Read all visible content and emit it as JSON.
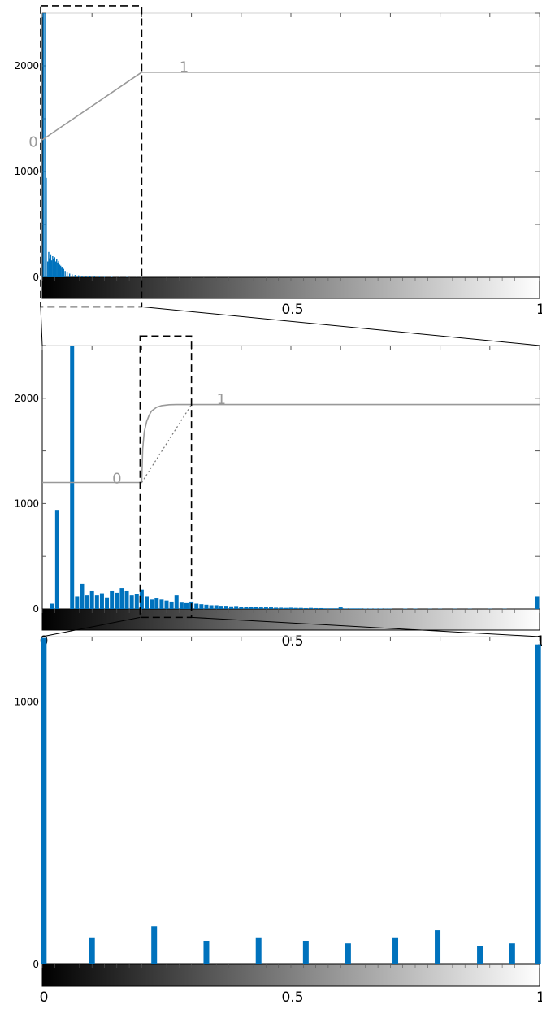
{
  "chart_data": [
    {
      "type": "bar",
      "xlim": [
        0,
        1
      ],
      "ylim": [
        0,
        2500
      ],
      "yticks": [
        0,
        1000,
        2000
      ],
      "xtick_labels": [
        "0.5",
        "1"
      ],
      "grid": false,
      "colors": {
        "bar": "#0072BD",
        "curve": "#999999",
        "curve_label": "#999999"
      },
      "bars": [
        {
          "x": 0.002,
          "y": 2500
        },
        {
          "x": 0.005,
          "y": 2500
        },
        {
          "x": 0.008,
          "y": 940
        },
        {
          "x": 0.011,
          "y": 150
        },
        {
          "x": 0.013,
          "y": 240
        },
        {
          "x": 0.015,
          "y": 180
        },
        {
          "x": 0.017,
          "y": 210
        },
        {
          "x": 0.019,
          "y": 160
        },
        {
          "x": 0.021,
          "y": 200
        },
        {
          "x": 0.023,
          "y": 170
        },
        {
          "x": 0.025,
          "y": 190
        },
        {
          "x": 0.027,
          "y": 150
        },
        {
          "x": 0.029,
          "y": 175
        },
        {
          "x": 0.031,
          "y": 140
        },
        {
          "x": 0.033,
          "y": 155
        },
        {
          "x": 0.035,
          "y": 120
        },
        {
          "x": 0.037,
          "y": 110
        },
        {
          "x": 0.039,
          "y": 90
        },
        {
          "x": 0.041,
          "y": 100
        },
        {
          "x": 0.043,
          "y": 80
        },
        {
          "x": 0.046,
          "y": 60
        },
        {
          "x": 0.05,
          "y": 45
        },
        {
          "x": 0.055,
          "y": 35
        },
        {
          "x": 0.06,
          "y": 28
        },
        {
          "x": 0.066,
          "y": 22
        },
        {
          "x": 0.073,
          "y": 18
        },
        {
          "x": 0.08,
          "y": 14
        },
        {
          "x": 0.088,
          "y": 12
        },
        {
          "x": 0.096,
          "y": 10
        },
        {
          "x": 0.105,
          "y": 8
        },
        {
          "x": 0.115,
          "y": 6
        },
        {
          "x": 0.125,
          "y": 5
        },
        {
          "x": 0.14,
          "y": 4
        },
        {
          "x": 0.155,
          "y": 3
        },
        {
          "x": 0.17,
          "y": 3
        },
        {
          "x": 0.19,
          "y": 2
        }
      ],
      "curve": [
        [
          0,
          1300
        ],
        [
          0.2,
          1940
        ],
        [
          1,
          1940
        ]
      ],
      "curve_labels": [
        {
          "text": "0",
          "x": -0.018,
          "y": 1280
        },
        {
          "text": "1",
          "x": 0.285,
          "y": 1990
        }
      ],
      "zoom_box": {
        "x": [
          0,
          0.2
        ],
        "y": [
          -280,
          2570
        ]
      }
    },
    {
      "type": "bar",
      "xlim": [
        0,
        1
      ],
      "ylim": [
        0,
        2500
      ],
      "yticks": [
        0,
        1000,
        2000
      ],
      "xtick_labels": [
        "0",
        "0.5",
        "1"
      ],
      "grid": false,
      "colors": {
        "bar": "#0072BD",
        "curve": "#999999",
        "curve_label": "#999999"
      },
      "bars": [
        {
          "x": 0.02,
          "y": 50
        },
        {
          "x": 0.03,
          "y": 940
        },
        {
          "x": 0.06,
          "y": 2500
        },
        {
          "x": 0.07,
          "y": 120
        },
        {
          "x": 0.08,
          "y": 240
        },
        {
          "x": 0.09,
          "y": 130
        },
        {
          "x": 0.1,
          "y": 170
        },
        {
          "x": 0.11,
          "y": 130
        },
        {
          "x": 0.12,
          "y": 150
        },
        {
          "x": 0.13,
          "y": 110
        },
        {
          "x": 0.14,
          "y": 170
        },
        {
          "x": 0.15,
          "y": 155
        },
        {
          "x": 0.16,
          "y": 200
        },
        {
          "x": 0.17,
          "y": 170
        },
        {
          "x": 0.18,
          "y": 130
        },
        {
          "x": 0.19,
          "y": 140
        },
        {
          "x": 0.2,
          "y": 180
        },
        {
          "x": 0.21,
          "y": 120
        },
        {
          "x": 0.22,
          "y": 90
        },
        {
          "x": 0.23,
          "y": 100
        },
        {
          "x": 0.24,
          "y": 90
        },
        {
          "x": 0.25,
          "y": 80
        },
        {
          "x": 0.26,
          "y": 70
        },
        {
          "x": 0.27,
          "y": 130
        },
        {
          "x": 0.28,
          "y": 60
        },
        {
          "x": 0.29,
          "y": 55
        },
        {
          "x": 0.3,
          "y": 70
        },
        {
          "x": 0.31,
          "y": 50
        },
        {
          "x": 0.32,
          "y": 45
        },
        {
          "x": 0.33,
          "y": 40
        },
        {
          "x": 0.34,
          "y": 35
        },
        {
          "x": 0.35,
          "y": 35
        },
        {
          "x": 0.36,
          "y": 30
        },
        {
          "x": 0.37,
          "y": 30
        },
        {
          "x": 0.38,
          "y": 25
        },
        {
          "x": 0.39,
          "y": 28
        },
        {
          "x": 0.4,
          "y": 22
        },
        {
          "x": 0.41,
          "y": 20
        },
        {
          "x": 0.42,
          "y": 20
        },
        {
          "x": 0.43,
          "y": 18
        },
        {
          "x": 0.44,
          "y": 15
        },
        {
          "x": 0.45,
          "y": 15
        },
        {
          "x": 0.46,
          "y": 15
        },
        {
          "x": 0.47,
          "y": 12
        },
        {
          "x": 0.48,
          "y": 12
        },
        {
          "x": 0.49,
          "y": 10
        },
        {
          "x": 0.5,
          "y": 12
        },
        {
          "x": 0.51,
          "y": 10
        },
        {
          "x": 0.52,
          "y": 10
        },
        {
          "x": 0.53,
          "y": 8
        },
        {
          "x": 0.54,
          "y": 10
        },
        {
          "x": 0.55,
          "y": 8
        },
        {
          "x": 0.56,
          "y": 8
        },
        {
          "x": 0.57,
          "y": 6
        },
        {
          "x": 0.58,
          "y": 6
        },
        {
          "x": 0.59,
          "y": 6
        },
        {
          "x": 0.6,
          "y": 15
        },
        {
          "x": 0.61,
          "y": 5
        },
        {
          "x": 0.62,
          "y": 5
        },
        {
          "x": 0.63,
          "y": 5
        },
        {
          "x": 0.64,
          "y": 5
        },
        {
          "x": 0.65,
          "y": 4
        },
        {
          "x": 0.66,
          "y": 4
        },
        {
          "x": 0.67,
          "y": 4
        },
        {
          "x": 0.68,
          "y": 4
        },
        {
          "x": 0.69,
          "y": 3
        },
        {
          "x": 0.7,
          "y": 3
        },
        {
          "x": 0.73,
          "y": 3
        },
        {
          "x": 0.75,
          "y": 3
        },
        {
          "x": 0.78,
          "y": 2
        },
        {
          "x": 0.8,
          "y": 2
        },
        {
          "x": 0.83,
          "y": 2
        },
        {
          "x": 0.86,
          "y": 2
        },
        {
          "x": 0.9,
          "y": 2
        },
        {
          "x": 0.93,
          "y": 2
        },
        {
          "x": 0.995,
          "y": 120
        }
      ],
      "curve": [
        [
          0,
          1200
        ],
        [
          0.2,
          1200
        ],
        [
          0.202,
          1520
        ],
        [
          0.205,
          1680
        ],
        [
          0.21,
          1780
        ],
        [
          0.215,
          1840
        ],
        [
          0.22,
          1880
        ],
        [
          0.23,
          1915
        ],
        [
          0.24,
          1930
        ],
        [
          0.255,
          1938
        ],
        [
          0.27,
          1940
        ],
        [
          1,
          1940
        ]
      ],
      "linear_guide": [
        [
          0.2,
          1200
        ],
        [
          0.3,
          1940
        ]
      ],
      "curve_labels": [
        {
          "text": "0",
          "x": 0.15,
          "y": 1240
        },
        {
          "text": "1",
          "x": 0.36,
          "y": 1990
        }
      ],
      "zoom_box": {
        "x": [
          0.2,
          0.3
        ],
        "y": [
          -80,
          2590
        ]
      }
    },
    {
      "type": "bar",
      "xlim": [
        0,
        1
      ],
      "ylim": [
        0,
        1250
      ],
      "yticks": [
        0,
        1000
      ],
      "xtick_labels": [
        "0",
        "0.5",
        "1"
      ],
      "grid": false,
      "colors": {
        "bar": "#0072BD"
      },
      "bars": [
        {
          "x": 0.003,
          "y": 1245
        },
        {
          "x": 0.1,
          "y": 100
        },
        {
          "x": 0.225,
          "y": 145
        },
        {
          "x": 0.33,
          "y": 90
        },
        {
          "x": 0.435,
          "y": 100
        },
        {
          "x": 0.53,
          "y": 90
        },
        {
          "x": 0.615,
          "y": 80
        },
        {
          "x": 0.71,
          "y": 100
        },
        {
          "x": 0.795,
          "y": 130
        },
        {
          "x": 0.88,
          "y": 70
        },
        {
          "x": 0.945,
          "y": 80
        },
        {
          "x": 0.997,
          "y": 1220
        }
      ]
    }
  ]
}
